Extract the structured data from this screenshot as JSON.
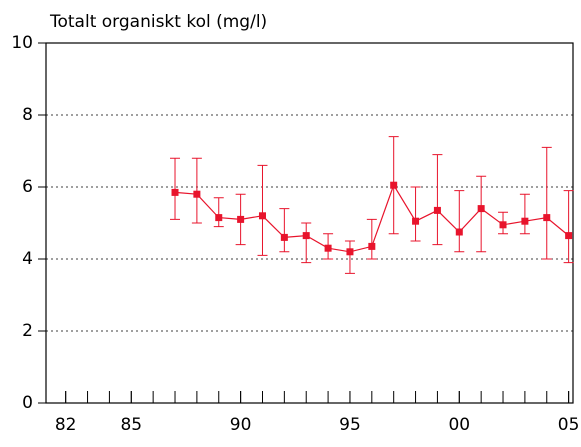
{
  "chart_data": {
    "type": "line",
    "title": "Totalt organiskt kol (mg/l)",
    "x": [
      1987,
      1988,
      1989,
      1990,
      1991,
      1992,
      1993,
      1994,
      1995,
      1996,
      1997,
      1998,
      1999,
      2000,
      2001,
      2002,
      2003,
      2004,
      2005
    ],
    "series": [
      {
        "color": "#e8142c",
        "values": [
          5.85,
          5.8,
          5.15,
          5.1,
          5.2,
          4.6,
          4.65,
          4.3,
          4.2,
          4.35,
          6.05,
          5.05,
          5.35,
          4.75,
          5.4,
          4.95,
          5.05,
          5.15,
          4.65
        ],
        "lower": [
          5.1,
          5.0,
          4.9,
          4.4,
          4.1,
          4.2,
          3.9,
          4.0,
          3.6,
          4.0,
          4.7,
          4.5,
          4.4,
          4.2,
          4.2,
          4.7,
          4.7,
          4.0,
          3.9
        ],
        "upper": [
          6.8,
          6.8,
          5.7,
          5.8,
          6.6,
          5.4,
          5.0,
          4.7,
          4.5,
          5.1,
          7.4,
          6.0,
          6.9,
          5.9,
          6.3,
          5.3,
          5.8,
          7.1,
          5.9
        ]
      }
    ],
    "xlim": [
      1981.1,
      2005.2
    ],
    "xticks": [
      {
        "value": 1982,
        "label": "82"
      },
      {
        "value": 1985,
        "label": "85"
      },
      {
        "value": 1990,
        "label": "90"
      },
      {
        "value": 1995,
        "label": "95"
      },
      {
        "value": 2000,
        "label": "00"
      },
      {
        "value": 2005,
        "label": "05"
      }
    ],
    "xticks_minor": [
      1982,
      1983,
      1984,
      1985,
      1986,
      1987,
      1988,
      1989,
      1990,
      1991,
      1992,
      1993,
      1994,
      1995,
      1996,
      1997,
      1998,
      1999,
      2000,
      2001,
      2002,
      2003,
      2004,
      2005
    ],
    "ylim": [
      0,
      10
    ],
    "yticks": [
      0,
      2,
      4,
      6,
      8,
      10
    ],
    "grid": true
  }
}
